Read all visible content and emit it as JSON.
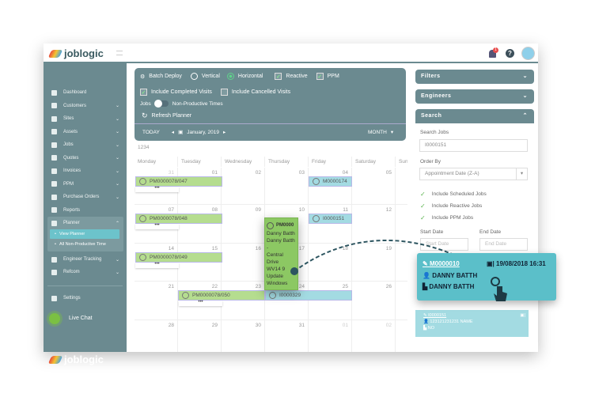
{
  "header": {
    "brand": "joblogic",
    "notification_count": "1",
    "icons": [
      "bell-icon",
      "help-icon",
      "user-avatar-icon",
      "hamburger-icon"
    ]
  },
  "sidebar": {
    "items": [
      {
        "label": "Dashboard",
        "chevron": false
      },
      {
        "label": "Customers",
        "chevron": true
      },
      {
        "label": "Sites",
        "chevron": true
      },
      {
        "label": "Assets",
        "chevron": true
      },
      {
        "label": "Jobs",
        "chevron": true
      },
      {
        "label": "Quotes",
        "chevron": true
      },
      {
        "label": "Invoices",
        "chevron": true
      },
      {
        "label": "PPM",
        "chevron": true
      },
      {
        "label": "Purchase Orders",
        "chevron": true
      },
      {
        "label": "Reports",
        "chevron": false
      },
      {
        "label": "Planner",
        "chevron": true
      }
    ],
    "planner_sub": [
      "View Planner",
      "All Non-Productive Time"
    ],
    "items2": [
      {
        "label": "Engineer Tracking"
      },
      {
        "label": "Refcom"
      }
    ],
    "settings": "Settings",
    "live_chat": "Live Chat",
    "footer_brand": "joblogic"
  },
  "toolbar": {
    "batch_deploy": "Batch Deploy",
    "vertical": "Vertical",
    "horizontal": "Horizontal",
    "orientation_selected": "Horizontal",
    "reactive": "Reactive",
    "reactive_checked": true,
    "ppm": "PPM",
    "ppm_checked": true,
    "include_completed": "Include Completed Visits",
    "include_completed_checked": true,
    "include_cancelled": "Include Cancelled Visits",
    "include_cancelled_checked": false,
    "jobs": "Jobs",
    "non_productive": "Non-Productive Times",
    "refresh": "Refresh Planner",
    "today": "TODAY",
    "month_label": "January, 2019",
    "view": "MONTH"
  },
  "calendar": {
    "caption": "1234",
    "days": [
      "Monday",
      "Tuesday",
      "Wednesday",
      "Thursday",
      "Friday",
      "Saturday",
      "Sun"
    ],
    "weeks": [
      [
        "31",
        "01",
        "02",
        "03",
        "04",
        "05"
      ],
      [
        "07",
        "08",
        "09",
        "10",
        "11",
        "12"
      ],
      [
        "14",
        "15",
        "16",
        "17",
        "18",
        "19"
      ],
      [
        "21",
        "22",
        "23",
        "24",
        "25",
        "26"
      ],
      [
        "28",
        "29",
        "30",
        "31",
        "01",
        "02"
      ]
    ],
    "events": [
      {
        "id": "PM0000078/047",
        "type": "ppm"
      },
      {
        "id": "M0000174",
        "type": "reactive"
      },
      {
        "id": "PM0000078/048",
        "type": "ppm"
      },
      {
        "id": "I0000151",
        "type": "reactive"
      },
      {
        "id": "PM0000078/049",
        "type": "ppm"
      },
      {
        "id": "PM0000078/050",
        "type": "ppm"
      },
      {
        "id": "I0000329",
        "type": "reactive"
      }
    ],
    "more_label": "•••",
    "dragged": {
      "id": "PM0000",
      "lines": [
        "Danny Batth",
        "Danny Batth -",
        "Central Drive",
        "WV14 9",
        "Update",
        "Windows"
      ]
    }
  },
  "right": {
    "filters": "Filters",
    "engineers": "Engineers",
    "search": "Search",
    "search_jobs_label": "Search Jobs",
    "search_jobs_value": "I0000151",
    "order_by_label": "Order By",
    "order_by_value": "Appointment Date (Z-A)",
    "checks": [
      {
        "label": "Include Scheduled Jobs",
        "checked": true
      },
      {
        "label": "Include Reactive Jobs",
        "checked": true
      },
      {
        "label": "Include PPM Jobs",
        "checked": true
      }
    ],
    "start_label": "Start Date",
    "start_placeholder": "Start Date",
    "end_label": "End Date",
    "end_placeholder": "End Date",
    "popup": {
      "id": "M0000010",
      "date": "19/08/2018 16:31",
      "customer": "DANNY BATTH",
      "site": "DANNY BATTH"
    },
    "result": {
      "id": "I0000151",
      "customer": "123121231231 NAME",
      "site": "NO"
    }
  },
  "colors": {
    "sidebar": "#6b8a90",
    "ppm": "#b5dd8f",
    "reactive": "#a3dbe2",
    "popup": "#5bbfc9",
    "dragged": "#8cc863"
  }
}
